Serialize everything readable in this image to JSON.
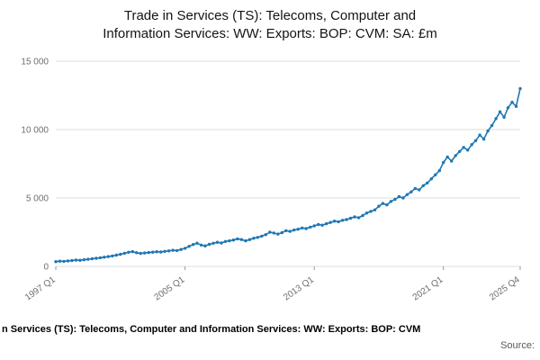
{
  "header": {
    "title_line1": "Trade in Services (TS): Telecoms, Computer and",
    "title_line2": "Information Services: WW: Exports: BOP: CVM: SA: £m"
  },
  "footer": {
    "text": "n Services (TS): Telecoms, Computer and Information Services: WW: Exports: BOP: CVM",
    "source_label": "Source:"
  },
  "colors": {
    "line": "#1f77b4",
    "grid": "#dcdcdc",
    "tick_text": "#6e6e6e"
  },
  "chart_data": {
    "type": "line",
    "title": "Trade in Services (TS): Telecoms, Computer and Information Services: WW: Exports: BOP: CVM: SA: £m",
    "xlabel": "",
    "ylabel": "",
    "x_start": "1997 Q1",
    "x_end": "2025 Q4",
    "frequency": "quarterly",
    "ylim": [
      0,
      15000
    ],
    "grid": true,
    "legend": "none",
    "marker": "circle",
    "y_ticks": [
      {
        "value": 0,
        "label": "0"
      },
      {
        "value": 5000,
        "label": "5 000"
      },
      {
        "value": 10000,
        "label": "10 000"
      },
      {
        "value": 15000,
        "label": "15 000"
      }
    ],
    "x_ticks": [
      {
        "index": 0,
        "label": "1997 Q1"
      },
      {
        "index": 32,
        "label": "2005 Q1"
      },
      {
        "index": 64,
        "label": "2013 Q1"
      },
      {
        "index": 96,
        "label": "2021 Q1"
      },
      {
        "index": 115,
        "label": "2025 Q4"
      }
    ],
    "values": [
      350,
      380,
      370,
      400,
      430,
      460,
      450,
      490,
      520,
      560,
      590,
      630,
      670,
      720,
      760,
      820,
      880,
      960,
      1030,
      1080,
      1000,
      950,
      980,
      1010,
      1040,
      1070,
      1050,
      1100,
      1130,
      1180,
      1160,
      1240,
      1320,
      1470,
      1600,
      1700,
      1560,
      1500,
      1610,
      1690,
      1760,
      1710,
      1820,
      1870,
      1930,
      2010,
      1960,
      1870,
      1960,
      2060,
      2120,
      2210,
      2320,
      2500,
      2440,
      2360,
      2470,
      2610,
      2560,
      2660,
      2720,
      2810,
      2760,
      2870,
      2960,
      3060,
      3010,
      3120,
      3210,
      3310,
      3260,
      3370,
      3420,
      3520,
      3620,
      3560,
      3720,
      3900,
      4020,
      4130,
      4400,
      4600,
      4500,
      4750,
      4900,
      5100,
      5000,
      5250,
      5450,
      5700,
      5600,
      5900,
      6100,
      6400,
      6700,
      7000,
      7600,
      8000,
      7700,
      8100,
      8400,
      8700,
      8500,
      8900,
      9200,
      9600,
      9300,
      9900,
      10300,
      10800,
      11300,
      10900,
      11600,
      12000,
      11700,
      13000
    ]
  }
}
